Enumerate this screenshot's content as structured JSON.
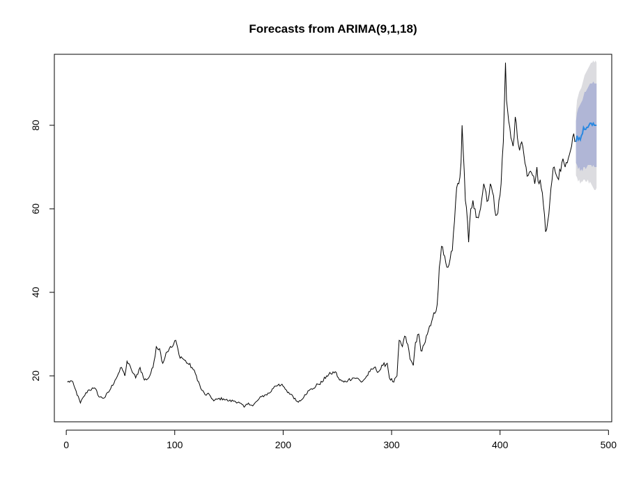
{
  "chart_data": {
    "type": "line",
    "title": "Forecasts from ARIMA(9,1,18)",
    "xlabel": "",
    "ylabel": "",
    "xlim": [
      -11,
      503
    ],
    "ylim": [
      9,
      97
    ],
    "x_ticks": [
      0,
      100,
      200,
      300,
      400,
      500
    ],
    "y_ticks": [
      20,
      40,
      60,
      80
    ],
    "grid": false,
    "legend": "none",
    "colors": {
      "observed": "#000000",
      "forecast": "#2a88e0",
      "band95": "#dcdce0",
      "band80": "#b0b6d6"
    },
    "observed_keypoints": [
      [
        1,
        18.5
      ],
      [
        5,
        18.8
      ],
      [
        8,
        17.0
      ],
      [
        13,
        13.5
      ],
      [
        16,
        15.0
      ],
      [
        20,
        16.5
      ],
      [
        25,
        17.0
      ],
      [
        28,
        16.5
      ],
      [
        30,
        15.0
      ],
      [
        35,
        14.7
      ],
      [
        40,
        16.5
      ],
      [
        45,
        19.0
      ],
      [
        48,
        20.5
      ],
      [
        51,
        22.0
      ],
      [
        54,
        20.0
      ],
      [
        56,
        23.5
      ],
      [
        60,
        21.5
      ],
      [
        64,
        19.5
      ],
      [
        68,
        22.0
      ],
      [
        72,
        19.0
      ],
      [
        76,
        19.5
      ],
      [
        80,
        22.0
      ],
      [
        83,
        27.0
      ],
      [
        86,
        26.5
      ],
      [
        89,
        23.0
      ],
      [
        92,
        25.5
      ],
      [
        95,
        26.5
      ],
      [
        98,
        27.0
      ],
      [
        101,
        28.5
      ],
      [
        104,
        25.0
      ],
      [
        108,
        24.0
      ],
      [
        112,
        23.0
      ],
      [
        116,
        22.0
      ],
      [
        120,
        20.0
      ],
      [
        124,
        17.0
      ],
      [
        128,
        15.5
      ],
      [
        132,
        15.5
      ],
      [
        136,
        14.0
      ],
      [
        140,
        14.5
      ],
      [
        145,
        14.5
      ],
      [
        150,
        14.0
      ],
      [
        155,
        14.0
      ],
      [
        160,
        13.5
      ],
      [
        164,
        12.5
      ],
      [
        168,
        13.5
      ],
      [
        172,
        12.8
      ],
      [
        176,
        14.0
      ],
      [
        180,
        15.0
      ],
      [
        184,
        15.5
      ],
      [
        188,
        16.0
      ],
      [
        192,
        17.5
      ],
      [
        196,
        18.0
      ],
      [
        200,
        17.5
      ],
      [
        204,
        16.0
      ],
      [
        208,
        15.5
      ],
      [
        212,
        14.0
      ],
      [
        216,
        14.0
      ],
      [
        220,
        15.5
      ],
      [
        224,
        16.5
      ],
      [
        228,
        17.0
      ],
      [
        232,
        18.0
      ],
      [
        236,
        18.5
      ],
      [
        240,
        20.0
      ],
      [
        244,
        20.5
      ],
      [
        248,
        21.0
      ],
      [
        252,
        19.0
      ],
      [
        256,
        18.5
      ],
      [
        260,
        19.0
      ],
      [
        264,
        19.5
      ],
      [
        268,
        19.5
      ],
      [
        272,
        18.5
      ],
      [
        276,
        19.5
      ],
      [
        280,
        21.0
      ],
      [
        284,
        22.0
      ],
      [
        288,
        21.0
      ],
      [
        292,
        22.5
      ],
      [
        296,
        23.0
      ],
      [
        298,
        19.5
      ],
      [
        302,
        18.5
      ],
      [
        305,
        20.0
      ],
      [
        307,
        28.5
      ],
      [
        310,
        27.0
      ],
      [
        312,
        29.5
      ],
      [
        315,
        27.5
      ],
      [
        317,
        24.0
      ],
      [
        320,
        22.5
      ],
      [
        322,
        28.0
      ],
      [
        325,
        30.0
      ],
      [
        327,
        26.0
      ],
      [
        330,
        27.5
      ],
      [
        333,
        30.0
      ],
      [
        336,
        32.0
      ],
      [
        338,
        34.0
      ],
      [
        340,
        35.0
      ],
      [
        342,
        37.0
      ],
      [
        344,
        46.0
      ],
      [
        346,
        51.0
      ],
      [
        348,
        49.0
      ],
      [
        350,
        47.0
      ],
      [
        352,
        46.0
      ],
      [
        354,
        48.0
      ],
      [
        356,
        50.0
      ],
      [
        358,
        57.0
      ],
      [
        360,
        65.0
      ],
      [
        362,
        66.0
      ],
      [
        364,
        71.0
      ],
      [
        365,
        80.0
      ],
      [
        366,
        74.0
      ],
      [
        368,
        62.0
      ],
      [
        370,
        57.0
      ],
      [
        371,
        52.0
      ],
      [
        373,
        60.0
      ],
      [
        375,
        62.0
      ],
      [
        377,
        60.0
      ],
      [
        379,
        58.0
      ],
      [
        381,
        59.0
      ],
      [
        383,
        62.0
      ],
      [
        385,
        66.0
      ],
      [
        387,
        64.0
      ],
      [
        389,
        62.0
      ],
      [
        391,
        66.0
      ],
      [
        393,
        64.0
      ],
      [
        395,
        60.0
      ],
      [
        397,
        58.5
      ],
      [
        399,
        62.0
      ],
      [
        401,
        66.0
      ],
      [
        403,
        76.0
      ],
      [
        404,
        85.0
      ],
      [
        405,
        95.0
      ],
      [
        406,
        86.0
      ],
      [
        408,
        81.0
      ],
      [
        410,
        77.0
      ],
      [
        412,
        75.0
      ],
      [
        414,
        82.0
      ],
      [
        416,
        77.0
      ],
      [
        418,
        74.0
      ],
      [
        420,
        76.0
      ],
      [
        422,
        73.0
      ],
      [
        424,
        70.0
      ],
      [
        426,
        68.0
      ],
      [
        428,
        69.0
      ],
      [
        430,
        68.0
      ],
      [
        432,
        66.0
      ],
      [
        434,
        70.0
      ],
      [
        436,
        66.0
      ],
      [
        438,
        65.0
      ],
      [
        440,
        61.0
      ],
      [
        442,
        54.5
      ],
      [
        444,
        57.0
      ],
      [
        446,
        62.0
      ],
      [
        448,
        67.0
      ],
      [
        450,
        70.0
      ],
      [
        452,
        68.0
      ],
      [
        454,
        67.0
      ],
      [
        456,
        69.0
      ],
      [
        458,
        72.0
      ],
      [
        460,
        70.0
      ],
      [
        462,
        71.0
      ],
      [
        464,
        73.0
      ],
      [
        466,
        75.0
      ],
      [
        468,
        78.0
      ],
      [
        469,
        76.0
      ]
    ],
    "forecast": {
      "x": [
        470,
        471,
        472,
        473,
        474,
        475,
        476,
        477,
        478,
        479,
        480,
        481,
        482,
        483,
        484,
        485,
        486,
        487,
        488,
        489
      ],
      "mean": [
        76.0,
        77.5,
        76.5,
        77.0,
        76.5,
        77.5,
        78.0,
        79.5,
        79.0,
        79.0,
        79.5,
        79.5,
        80.0,
        80.5,
        80.5,
        80.0,
        80.5,
        80.0,
        80.0,
        80.0
      ],
      "lo80": [
        71.0,
        70.5,
        69.5,
        70.0,
        69.0,
        69.5,
        69.0,
        70.0,
        70.0,
        69.5,
        70.0,
        70.5,
        70.5,
        70.5,
        70.5,
        70.0,
        70.5,
        70.0,
        70.0,
        70.0
      ],
      "hi80": [
        81.0,
        83.0,
        84.0,
        84.5,
        85.0,
        85.5,
        86.0,
        87.0,
        88.0,
        88.0,
        88.5,
        89.0,
        89.5,
        90.0,
        90.0,
        90.0,
        90.5,
        90.0,
        90.0,
        90.0
      ],
      "lo95": [
        68.0,
        67.5,
        66.5,
        67.0,
        66.0,
        66.5,
        66.5,
        67.0,
        67.0,
        66.5,
        66.5,
        67.0,
        66.0,
        66.5,
        66.0,
        65.5,
        65.0,
        64.5,
        64.5,
        65.0
      ],
      "hi95": [
        83.0,
        86.0,
        87.0,
        88.0,
        88.5,
        89.0,
        90.0,
        91.0,
        92.0,
        92.5,
        93.0,
        93.5,
        94.0,
        94.5,
        95.0,
        95.0,
        95.5,
        95.0,
        95.5,
        95.0
      ]
    }
  }
}
